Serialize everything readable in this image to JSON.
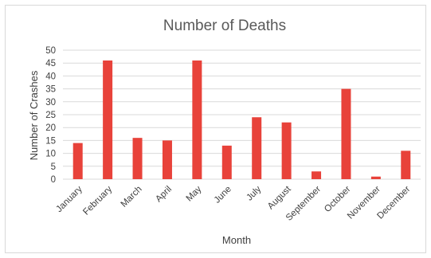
{
  "chart_data": {
    "type": "bar",
    "title": "Number of Deaths",
    "xlabel": "Month",
    "ylabel": "Number of Crashes",
    "categories": [
      "January",
      "February",
      "March",
      "April",
      "May",
      "June",
      "July",
      "August",
      "September",
      "October",
      "November",
      "December"
    ],
    "values": [
      14,
      46,
      16,
      15,
      46,
      13,
      24,
      22,
      3,
      35,
      1,
      11
    ],
    "ylim": [
      0,
      50
    ],
    "yticks": [
      0,
      5,
      10,
      15,
      20,
      25,
      30,
      35,
      40,
      45,
      50
    ],
    "grid": true,
    "legend": "none",
    "bar_color": "#e8423a"
  }
}
